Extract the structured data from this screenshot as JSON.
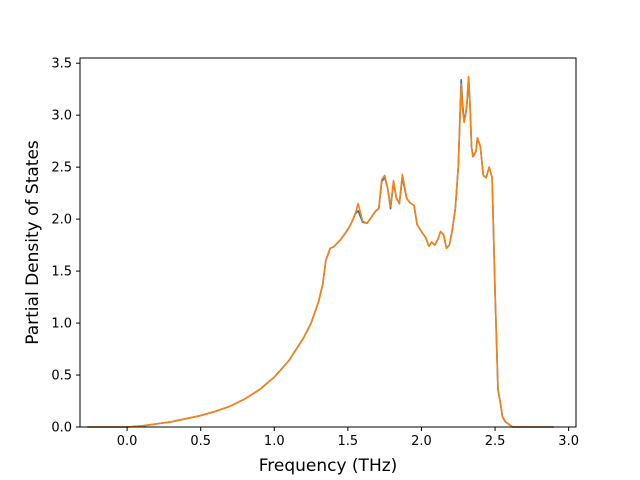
{
  "chart_data": {
    "type": "line",
    "title": "",
    "xlabel": "Frequency (THz)",
    "ylabel": "Partial Density of States",
    "xlim": [
      -0.32,
      3.05
    ],
    "ylim": [
      0.0,
      3.55
    ],
    "xticks": [
      0.0,
      0.5,
      1.0,
      1.5,
      2.0,
      2.5,
      3.0
    ],
    "xtick_labels": [
      "0.0",
      "0.5",
      "1.0",
      "1.5",
      "2.0",
      "2.5",
      "3.0"
    ],
    "yticks": [
      0.0,
      0.5,
      1.0,
      1.5,
      2.0,
      2.5,
      3.0,
      3.5
    ],
    "ytick_labels": [
      "0.0",
      "0.5",
      "1.0",
      "1.5",
      "2.0",
      "2.5",
      "3.0",
      "3.5"
    ],
    "grid": false,
    "legend": "none",
    "series": [
      {
        "color": "#1f77b4",
        "x": [
          -0.27,
          -0.1,
          0.0,
          0.1,
          0.2,
          0.3,
          0.4,
          0.5,
          0.6,
          0.7,
          0.8,
          0.9,
          1.0,
          1.1,
          1.2,
          1.25,
          1.3,
          1.33,
          1.35,
          1.38,
          1.4,
          1.45,
          1.5,
          1.53,
          1.55,
          1.57,
          1.6,
          1.63,
          1.66,
          1.69,
          1.71,
          1.73,
          1.75,
          1.77,
          1.79,
          1.81,
          1.83,
          1.85,
          1.87,
          1.9,
          1.92,
          1.95,
          1.97,
          2.0,
          2.03,
          2.05,
          2.07,
          2.09,
          2.11,
          2.13,
          2.15,
          2.17,
          2.19,
          2.21,
          2.23,
          2.25,
          2.27,
          2.28,
          2.29,
          2.3,
          2.31,
          2.32,
          2.33,
          2.34,
          2.35,
          2.37,
          2.38,
          2.4,
          2.42,
          2.44,
          2.46,
          2.48,
          2.5,
          2.52,
          2.54,
          2.55,
          2.57,
          2.6,
          2.62,
          2.65,
          2.75,
          2.9
        ],
        "values": [
          0.0,
          0.0,
          0.0,
          0.01,
          0.03,
          0.05,
          0.08,
          0.11,
          0.15,
          0.2,
          0.27,
          0.36,
          0.48,
          0.64,
          0.86,
          1.0,
          1.2,
          1.38,
          1.6,
          1.72,
          1.73,
          1.8,
          1.9,
          1.98,
          2.05,
          2.08,
          1.97,
          1.96,
          2.02,
          2.08,
          2.1,
          2.36,
          2.4,
          2.3,
          2.1,
          2.35,
          2.2,
          2.15,
          2.4,
          2.2,
          2.16,
          2.13,
          1.95,
          1.88,
          1.82,
          1.74,
          1.78,
          1.75,
          1.8,
          1.88,
          1.85,
          1.72,
          1.75,
          1.9,
          2.1,
          2.5,
          3.34,
          3.1,
          2.95,
          3.0,
          3.12,
          3.36,
          3.1,
          2.7,
          2.6,
          2.65,
          2.78,
          2.7,
          2.42,
          2.4,
          2.5,
          2.4,
          1.3,
          0.36,
          0.2,
          0.1,
          0.05,
          0.02,
          0.0,
          0.0,
          0.0,
          0.0
        ]
      },
      {
        "color": "#ff7f0e",
        "x": [
          -0.27,
          -0.1,
          0.0,
          0.1,
          0.2,
          0.3,
          0.4,
          0.5,
          0.6,
          0.7,
          0.8,
          0.9,
          1.0,
          1.1,
          1.2,
          1.25,
          1.3,
          1.33,
          1.35,
          1.38,
          1.4,
          1.45,
          1.5,
          1.53,
          1.55,
          1.57,
          1.6,
          1.63,
          1.66,
          1.69,
          1.71,
          1.73,
          1.75,
          1.77,
          1.79,
          1.81,
          1.83,
          1.85,
          1.87,
          1.9,
          1.92,
          1.95,
          1.97,
          2.0,
          2.03,
          2.05,
          2.07,
          2.09,
          2.11,
          2.13,
          2.15,
          2.17,
          2.19,
          2.21,
          2.23,
          2.25,
          2.27,
          2.28,
          2.29,
          2.3,
          2.31,
          2.32,
          2.33,
          2.34,
          2.35,
          2.37,
          2.38,
          2.4,
          2.42,
          2.44,
          2.46,
          2.48,
          2.5,
          2.52,
          2.54,
          2.55,
          2.57,
          2.6,
          2.62,
          2.65,
          2.75,
          2.9
        ],
        "values": [
          0.0,
          0.0,
          0.0,
          0.01,
          0.03,
          0.05,
          0.08,
          0.11,
          0.15,
          0.2,
          0.27,
          0.36,
          0.48,
          0.64,
          0.86,
          1.0,
          1.2,
          1.38,
          1.6,
          1.72,
          1.73,
          1.8,
          1.9,
          1.98,
          2.05,
          2.15,
          1.98,
          1.96,
          2.02,
          2.08,
          2.1,
          2.38,
          2.42,
          2.3,
          2.12,
          2.37,
          2.2,
          2.15,
          2.43,
          2.2,
          2.16,
          2.13,
          1.95,
          1.88,
          1.82,
          1.74,
          1.78,
          1.75,
          1.8,
          1.88,
          1.85,
          1.72,
          1.75,
          1.9,
          2.1,
          2.5,
          3.3,
          3.05,
          2.93,
          3.0,
          3.15,
          3.37,
          3.1,
          2.7,
          2.6,
          2.65,
          2.78,
          2.7,
          2.42,
          2.4,
          2.5,
          2.4,
          1.3,
          0.36,
          0.2,
          0.1,
          0.05,
          0.02,
          0.0,
          0.0,
          0.0,
          0.0
        ]
      }
    ]
  }
}
